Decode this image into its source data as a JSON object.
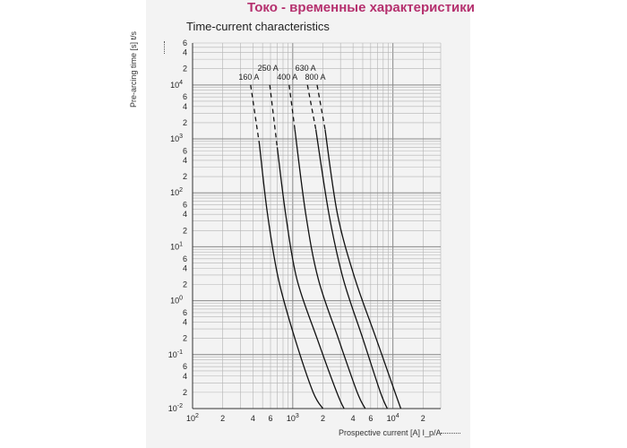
{
  "header": {
    "page_title": "Токо - временные характеристики"
  },
  "chart_data": {
    "type": "line",
    "title": "Time-current characteristics",
    "xlabel": "Prospective current [A]  I_p/A",
    "ylabel": "Pre-arcing time [s]  t/s",
    "x_scale": "log",
    "y_scale": "log",
    "xlim": [
      100,
      30000
    ],
    "ylim": [
      0.01,
      60000
    ],
    "grid": true,
    "x_ticks": [
      {
        "v": 100,
        "m": "10",
        "e": "2"
      },
      {
        "v": 200,
        "m": "2",
        "e": ""
      },
      {
        "v": 400,
        "m": "4",
        "e": ""
      },
      {
        "v": 600,
        "m": "6",
        "e": ""
      },
      {
        "v": 1000,
        "m": "10",
        "e": "3"
      },
      {
        "v": 2000,
        "m": "2",
        "e": ""
      },
      {
        "v": 4000,
        "m": "4",
        "e": ""
      },
      {
        "v": 6000,
        "m": "6",
        "e": ""
      },
      {
        "v": 10000,
        "m": "10",
        "e": "4"
      },
      {
        "v": 20000,
        "m": "2",
        "e": ""
      }
    ],
    "y_ticks": [
      {
        "v": 60000,
        "m": "6",
        "e": ""
      },
      {
        "v": 40000,
        "m": "4",
        "e": ""
      },
      {
        "v": 20000,
        "m": "2",
        "e": ""
      },
      {
        "v": 10000,
        "m": "10",
        "e": "4"
      },
      {
        "v": 6000,
        "m": "6",
        "e": ""
      },
      {
        "v": 4000,
        "m": "4",
        "e": ""
      },
      {
        "v": 2000,
        "m": "2",
        "e": ""
      },
      {
        "v": 1000,
        "m": "10",
        "e": "3"
      },
      {
        "v": 600,
        "m": "6",
        "e": ""
      },
      {
        "v": 400,
        "m": "4",
        "e": ""
      },
      {
        "v": 200,
        "m": "2",
        "e": ""
      },
      {
        "v": 100,
        "m": "10",
        "e": "2"
      },
      {
        "v": 60,
        "m": "6",
        "e": ""
      },
      {
        "v": 40,
        "m": "4",
        "e": ""
      },
      {
        "v": 20,
        "m": "2",
        "e": ""
      },
      {
        "v": 10,
        "m": "10",
        "e": "1"
      },
      {
        "v": 6,
        "m": "6",
        "e": ""
      },
      {
        "v": 4,
        "m": "4",
        "e": ""
      },
      {
        "v": 2,
        "m": "2",
        "e": ""
      },
      {
        "v": 1,
        "m": "10",
        "e": "0"
      },
      {
        "v": 0.6,
        "m": "6",
        "e": ""
      },
      {
        "v": 0.4,
        "m": "4",
        "e": ""
      },
      {
        "v": 0.2,
        "m": "2",
        "e": ""
      },
      {
        "v": 0.1,
        "m": "10",
        "e": "-1"
      },
      {
        "v": 0.06,
        "m": "6",
        "e": ""
      },
      {
        "v": 0.04,
        "m": "4",
        "e": ""
      },
      {
        "v": 0.02,
        "m": "2",
        "e": ""
      },
      {
        "v": 0.01,
        "m": "10",
        "e": "-2"
      }
    ],
    "series": [
      {
        "name": "160 A",
        "dashed": {
          "x": [
            380,
            465
          ],
          "y": [
            10000,
            800
          ]
        },
        "solid": {
          "x": [
            465,
            560,
            720,
            1050,
            1600,
            2000
          ],
          "y": [
            800,
            40,
            2.5,
            0.2,
            0.02,
            0.01
          ]
        }
      },
      {
        "name": "250 A",
        "dashed": {
          "x": [
            590,
            700
          ],
          "y": [
            10000,
            700
          ]
        },
        "solid": {
          "x": [
            700,
            850,
            1100,
            1750,
            2750,
            3250
          ],
          "y": [
            700,
            40,
            2.5,
            0.2,
            0.02,
            0.01
          ]
        }
      },
      {
        "name": "400 A",
        "dashed": {
          "x": [
            920,
            1050
          ],
          "y": [
            10000,
            1500
          ]
        },
        "solid": {
          "x": [
            1050,
            1350,
            1800,
            2850,
            4400,
            5300
          ],
          "y": [
            1500,
            40,
            2.5,
            0.2,
            0.02,
            0.01
          ]
        }
      },
      {
        "name": "630 A",
        "dashed": {
          "x": [
            1400,
            1700
          ],
          "y": [
            10000,
            1500
          ]
        },
        "solid": {
          "x": [
            1700,
            2300,
            3200,
            5000,
            7500,
            8800
          ],
          "y": [
            1500,
            40,
            2.5,
            0.2,
            0.02,
            0.01
          ]
        }
      },
      {
        "name": "800 A",
        "dashed": {
          "x": [
            1750,
            2100
          ],
          "y": [
            10000,
            1500
          ]
        },
        "solid": {
          "x": [
            2100,
            2800,
            4200,
            6800,
            10500,
            12000
          ],
          "y": [
            1500,
            40,
            2.5,
            0.2,
            0.02,
            0.01
          ]
        }
      }
    ]
  }
}
